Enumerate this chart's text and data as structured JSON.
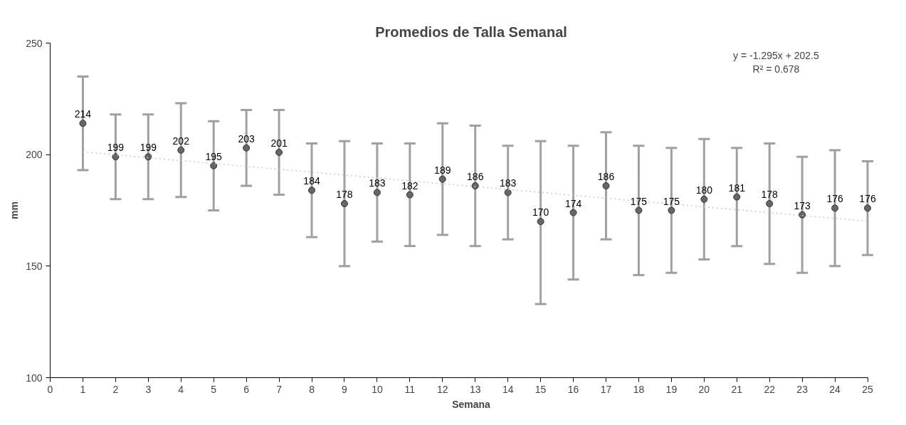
{
  "chart_data": {
    "type": "scatter",
    "title": "Promedios de Talla Semanal",
    "xlabel": "Semana",
    "ylabel": "mm",
    "x": [
      1,
      2,
      3,
      4,
      5,
      6,
      7,
      8,
      9,
      10,
      11,
      12,
      13,
      14,
      15,
      16,
      17,
      18,
      19,
      20,
      21,
      22,
      23,
      24,
      25
    ],
    "series": [
      {
        "color": "#666666",
        "values": [
          214,
          199,
          199,
          202,
          195,
          203,
          201,
          184,
          178,
          183,
          182,
          189,
          186,
          183,
          170,
          174,
          186,
          175,
          175,
          180,
          181,
          178,
          173,
          176,
          176
        ],
        "value_labels": [
          "214",
          "199",
          "199",
          "202",
          "195",
          "203",
          "201",
          "184",
          "178",
          "183",
          "182",
          "189",
          "186",
          "183",
          "170",
          "174",
          "186",
          "175",
          "175",
          "180",
          "181",
          "178",
          "173",
          "176",
          "176"
        ],
        "errors": [
          [
            193,
            235
          ],
          [
            180,
            218
          ],
          [
            180,
            218
          ],
          [
            181,
            223
          ],
          [
            175,
            215
          ],
          [
            186,
            220
          ],
          [
            182,
            220
          ],
          [
            163,
            205
          ],
          [
            150,
            206
          ],
          [
            161,
            205
          ],
          [
            159,
            205
          ],
          [
            164,
            214
          ],
          [
            159,
            213
          ],
          [
            162,
            204
          ],
          [
            133,
            206
          ],
          [
            144,
            204
          ],
          [
            162,
            210
          ],
          [
            146,
            204
          ],
          [
            147,
            203
          ],
          [
            153,
            207
          ],
          [
            159,
            203
          ],
          [
            151,
            205
          ],
          [
            147,
            199
          ],
          [
            150,
            202
          ],
          [
            155,
            197
          ]
        ]
      },
      {
        "type": "line",
        "color": "#c8c8c8",
        "line_style": "dotted",
        "marker": "none",
        "x": [
          1,
          25
        ],
        "values": [
          201.2,
          170.1
        ]
      }
    ],
    "marker": "circle",
    "annotations": [
      "y = -1.295x + 202.5",
      "R² = 0.678"
    ],
    "xlim": [
      0,
      25
    ],
    "xticks": [
      0,
      1,
      2,
      3,
      4,
      5,
      6,
      7,
      8,
      9,
      10,
      11,
      12,
      13,
      14,
      15,
      16,
      17,
      18,
      19,
      20,
      21,
      22,
      23,
      24,
      25
    ],
    "ylim": [
      100,
      250
    ],
    "yticks": [
      100,
      150,
      200,
      250
    ],
    "grid": false
  }
}
